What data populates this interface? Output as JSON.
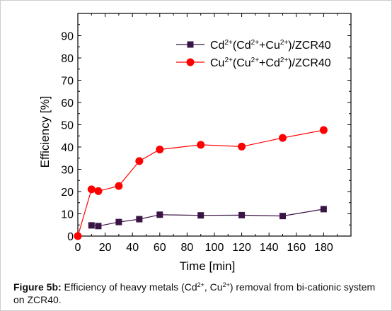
{
  "chart_data": {
    "type": "line",
    "xlabel": "Time [min]",
    "ylabel": "Efficiency [%]",
    "xlim": [
      0,
      200
    ],
    "ylim": [
      0,
      100
    ],
    "x_ticks": [
      0,
      20,
      40,
      60,
      80,
      100,
      120,
      140,
      160,
      180
    ],
    "y_ticks": [
      0,
      10,
      20,
      30,
      40,
      50,
      60,
      70,
      80,
      90
    ],
    "grid": false,
    "legend_position": "top-right",
    "series": [
      {
        "name": "Cd2+(Cd2++Cu2+)/ZCR40",
        "legend_parts": [
          {
            "t": "Cd",
            "sup": false
          },
          {
            "t": "2+",
            "sup": true
          },
          {
            "t": "(Cd",
            "sup": false
          },
          {
            "t": "2+",
            "sup": true
          },
          {
            "t": "+Cu",
            "sup": false
          },
          {
            "t": "2+",
            "sup": true
          },
          {
            "t": ")/ZCR40",
            "sup": false
          }
        ],
        "marker": "square",
        "color": "#3b1446",
        "x": [
          10,
          15,
          30,
          45,
          60,
          90,
          120,
          150,
          180
        ],
        "y": [
          4.8,
          4.5,
          6.3,
          7.6,
          9.6,
          9.3,
          9.4,
          9.0,
          12.1
        ]
      },
      {
        "name": "Cu2+(Cu2++Cd2+)/ZCR40",
        "legend_parts": [
          {
            "t": "Cu",
            "sup": false
          },
          {
            "t": "2+",
            "sup": true
          },
          {
            "t": "(Cu",
            "sup": false
          },
          {
            "t": "2+",
            "sup": true
          },
          {
            "t": "+Cd",
            "sup": false
          },
          {
            "t": "2+",
            "sup": true
          },
          {
            "t": ")/ZCR40",
            "sup": false
          }
        ],
        "marker": "circle",
        "color": "#ff0000",
        "x": [
          0,
          10,
          15,
          30,
          45,
          60,
          90,
          120,
          150,
          180
        ],
        "y": [
          0,
          21,
          20.2,
          22.5,
          33.7,
          38.9,
          41.0,
          40.2,
          44.1,
          47.6
        ]
      }
    ]
  },
  "caption": {
    "label": "Figure 5b:",
    "t1": " Efficiency of heavy metals (Cd",
    "sup1": "2+",
    "t2": ", Cu",
    "sup2": "2+",
    "t3": ") removal from bi-cationic system on ZCR40."
  }
}
